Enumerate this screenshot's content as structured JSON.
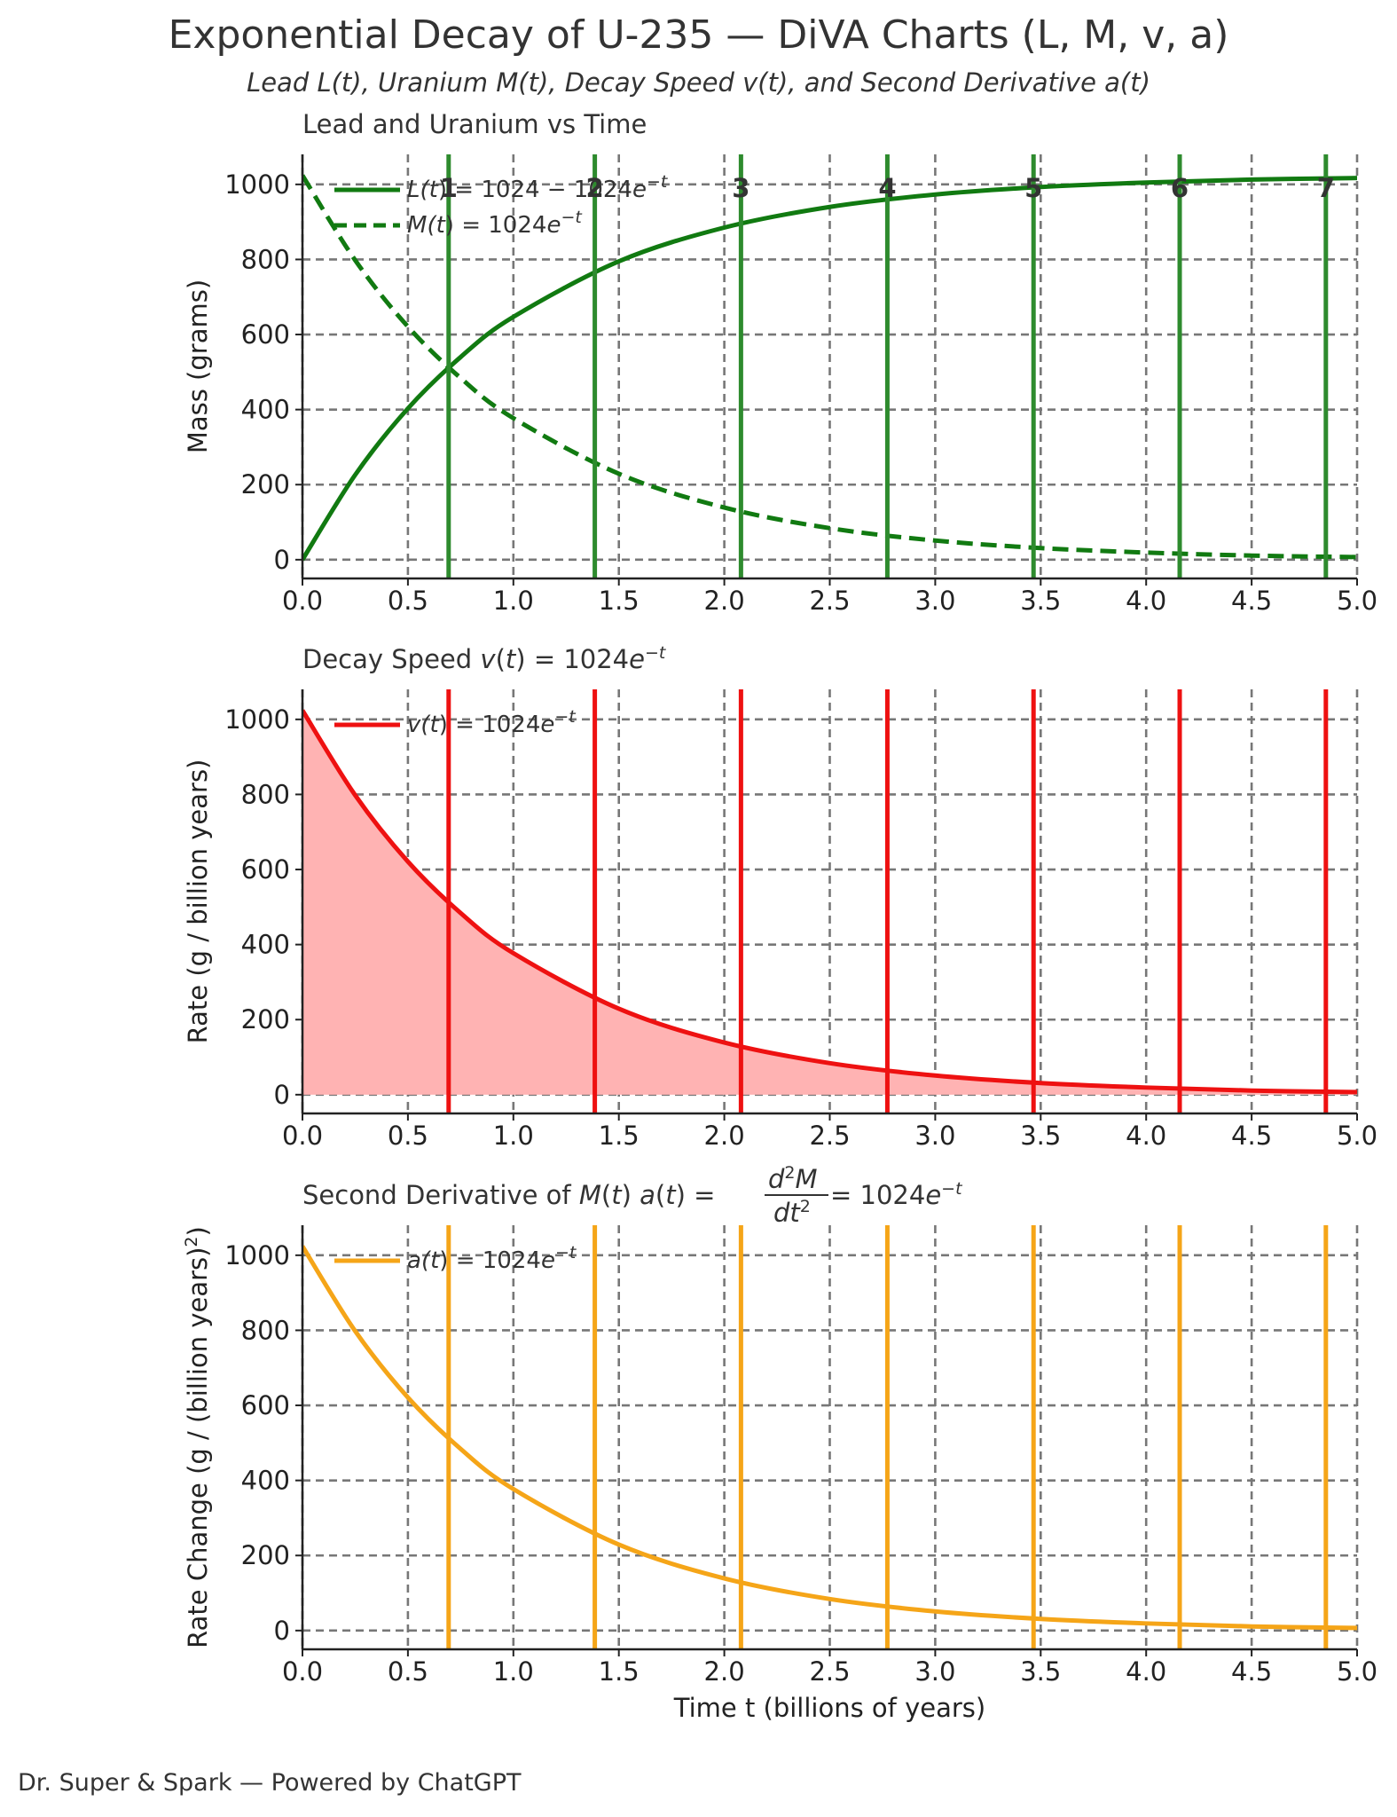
{
  "title": "Exponential Decay of U-235 — DiVA Charts (L, M, v, a)",
  "subtitle": "Lead L(t), Uranium M(t), Decay Speed v(t), and Second Derivative a(t)",
  "footer": "Dr. Super & Spark — Powered by ChatGPT",
  "colors": {
    "green": "#117a11",
    "green_marker": "#2e8b2e",
    "red": "#ee1111",
    "red_fill": "#ffb3b3",
    "orange": "#f5a518",
    "grid": "#777777",
    "axis": "#222222"
  },
  "chart_data": [
    {
      "type": "line",
      "panel_title": "Lead and Uranium vs Time",
      "xlabel": "",
      "ylabel": "Mass (grams)",
      "xlim": [
        0,
        5
      ],
      "ylim": [
        -50,
        1080
      ],
      "xticks": [
        0.0,
        0.5,
        1.0,
        1.5,
        2.0,
        2.5,
        3.0,
        3.5,
        4.0,
        4.5,
        5.0
      ],
      "xtick_labels": [
        "0.0",
        "0.5",
        "1.0",
        "1.5",
        "2.0",
        "2.5",
        "3.0",
        "3.5",
        "4.0",
        "4.5",
        "5.0"
      ],
      "yticks": [
        0,
        200,
        400,
        600,
        800,
        1000
      ],
      "ytick_labels": [
        "0",
        "200",
        "400",
        "600",
        "800",
        "1000"
      ],
      "grid": true,
      "legend_position": "top-left",
      "series": [
        {
          "name": "L(t) = 1024 − 1024e^(−t)",
          "style": "solid",
          "color": "#117a11",
          "x": [
            0,
            0.25,
            0.5,
            0.75,
            1.0,
            1.5,
            2.0,
            2.5,
            3.0,
            3.5,
            4.0,
            4.5,
            5.0
          ],
          "values": [
            0,
            226,
            403,
            540,
            647,
            795,
            885,
            940,
            973,
            993,
            1005,
            1013,
            1017
          ]
        },
        {
          "name": "M(t) = 1024e^(−t)",
          "style": "dashed",
          "color": "#117a11",
          "x": [
            0,
            0.25,
            0.5,
            0.75,
            1.0,
            1.5,
            2.0,
            2.5,
            3.0,
            3.5,
            4.0,
            4.5,
            5.0
          ],
          "values": [
            1024,
            798,
            621,
            484,
            377,
            229,
            139,
            84,
            51,
            31,
            19,
            11,
            7
          ]
        }
      ],
      "markers": {
        "x": [
          0.693,
          1.386,
          2.079,
          2.773,
          3.466,
          4.159,
          4.852
        ],
        "labels": [
          "1",
          "2",
          "3",
          "4",
          "5",
          "6",
          "7"
        ],
        "color": "#2e8b2e"
      }
    },
    {
      "type": "area",
      "panel_title": "Decay Speed v(t) = 1024e^(−t)",
      "xlabel": "",
      "ylabel": "Rate (g / billion years)",
      "xlim": [
        0,
        5
      ],
      "ylim": [
        -50,
        1080
      ],
      "xticks": [
        0.0,
        0.5,
        1.0,
        1.5,
        2.0,
        2.5,
        3.0,
        3.5,
        4.0,
        4.5,
        5.0
      ],
      "xtick_labels": [
        "0.0",
        "0.5",
        "1.0",
        "1.5",
        "2.0",
        "2.5",
        "3.0",
        "3.5",
        "4.0",
        "4.5",
        "5.0"
      ],
      "yticks": [
        0,
        200,
        400,
        600,
        800,
        1000
      ],
      "ytick_labels": [
        "0",
        "200",
        "400",
        "600",
        "800",
        "1000"
      ],
      "grid": true,
      "legend_position": "top-left",
      "series": [
        {
          "name": "v(t) = 1024e^(−t)",
          "style": "solid",
          "color": "#ee1111",
          "fill": "#ffb3b3",
          "x": [
            0,
            0.25,
            0.5,
            0.75,
            1.0,
            1.5,
            2.0,
            2.5,
            3.0,
            3.5,
            4.0,
            4.5,
            5.0
          ],
          "values": [
            1024,
            798,
            621,
            484,
            377,
            229,
            139,
            84,
            51,
            31,
            19,
            11,
            7
          ]
        }
      ],
      "markers": {
        "x": [
          0.693,
          1.386,
          2.079,
          2.773,
          3.466,
          4.159,
          4.852
        ],
        "labels": [],
        "color": "#ee1111"
      }
    },
    {
      "type": "line",
      "panel_title": "Second Derivative of M(t) a(t) = d²M/dt² = 1024e^(−t)",
      "xlabel": "Time t (billions of years)",
      "ylabel": "Rate Change (g / (billion years)²)",
      "xlim": [
        0,
        5
      ],
      "ylim": [
        -50,
        1080
      ],
      "xticks": [
        0.0,
        0.5,
        1.0,
        1.5,
        2.0,
        2.5,
        3.0,
        3.5,
        4.0,
        4.5,
        5.0
      ],
      "xtick_labels": [
        "0.0",
        "0.5",
        "1.0",
        "1.5",
        "2.0",
        "2.5",
        "3.0",
        "3.5",
        "4.0",
        "4.5",
        "5.0"
      ],
      "yticks": [
        0,
        200,
        400,
        600,
        800,
        1000
      ],
      "ytick_labels": [
        "0",
        "200",
        "400",
        "600",
        "800",
        "1000"
      ],
      "grid": true,
      "legend_position": "top-left",
      "series": [
        {
          "name": "a(t) = 1024e^(−t)",
          "style": "solid",
          "color": "#f5a518",
          "x": [
            0,
            0.25,
            0.5,
            0.75,
            1.0,
            1.5,
            2.0,
            2.5,
            3.0,
            3.5,
            4.0,
            4.5,
            5.0
          ],
          "values": [
            1024,
            798,
            621,
            484,
            377,
            229,
            139,
            84,
            51,
            31,
            19,
            11,
            7
          ]
        }
      ],
      "markers": {
        "x": [
          0.693,
          1.386,
          2.079,
          2.773,
          3.466,
          4.159,
          4.852
        ],
        "labels": [],
        "color": "#f5a518"
      }
    }
  ]
}
